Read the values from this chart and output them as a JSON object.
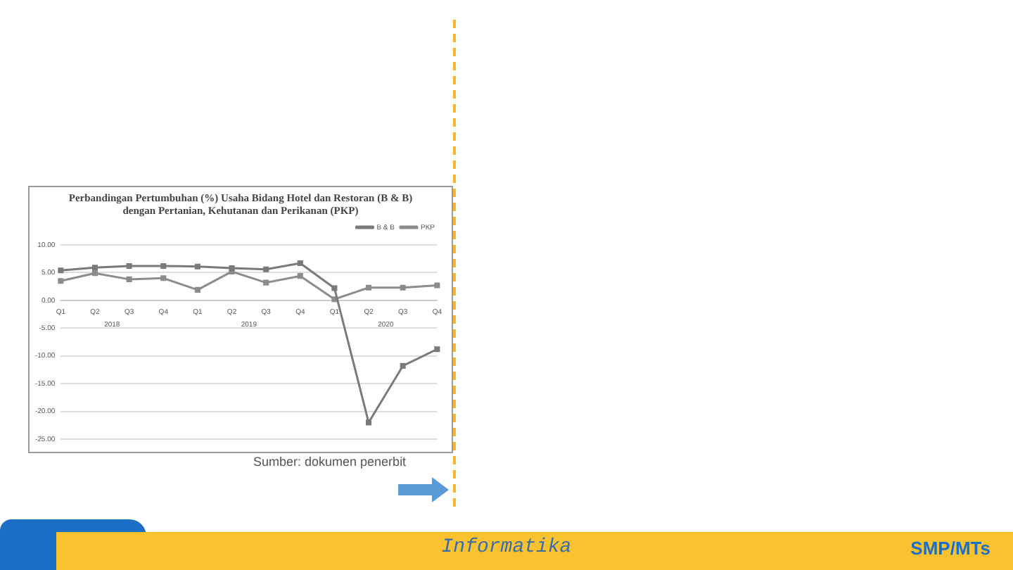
{
  "chart_data": {
    "type": "line",
    "title": "Perbandingan Pertumbuhan (%) Usaha Bidang Hotel dan Restoran (B & B) dengan Pertanian, Kehutanan dan Perikanan (PKP)",
    "categories": [
      "Q1",
      "Q2",
      "Q3",
      "Q4",
      "Q1",
      "Q2",
      "Q3",
      "Q4",
      "Q1",
      "Q2",
      "Q3",
      "Q4"
    ],
    "series": [
      {
        "name": "B & B",
        "color": "#7a7a7a",
        "values": [
          5.4,
          5.9,
          6.2,
          6.2,
          6.1,
          5.8,
          5.6,
          6.7,
          2.2,
          -22.0,
          -11.8,
          -8.8
        ]
      },
      {
        "name": "PKP",
        "color": "#8c8c8c",
        "values": [
          3.5,
          4.9,
          3.8,
          4.0,
          1.9,
          5.2,
          3.2,
          4.4,
          0.2,
          2.3,
          2.3,
          2.7
        ]
      }
    ],
    "ylim": [
      -25,
      10
    ],
    "yticks": [
      {
        "value": -25,
        "label": "-25.00"
      },
      {
        "value": -20,
        "label": "-20.00"
      },
      {
        "value": -15,
        "label": "-15.00"
      },
      {
        "value": -10,
        "label": "-10.00"
      },
      {
        "value": -5,
        "label": "-5.00"
      },
      {
        "value": 0,
        "label": "0.00"
      },
      {
        "value": 5,
        "label": "5.00"
      },
      {
        "value": 10,
        "label": "10.00"
      }
    ],
    "grid": "y",
    "legend": "top right",
    "marker": "square",
    "line_style": "solid",
    "annotations": [
      "2018",
      "2019",
      "2020",
      "Sumber: dokumen penerbit",
      "Informatika",
      "SMP/MTs"
    ]
  }
}
